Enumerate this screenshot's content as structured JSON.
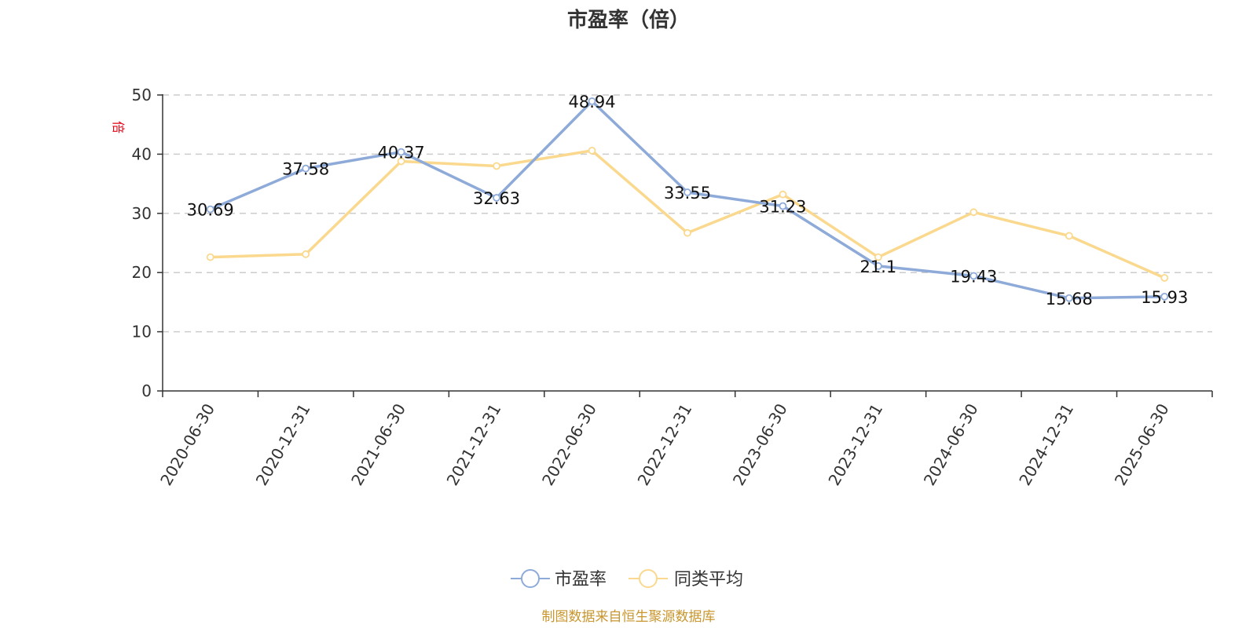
{
  "chart_data": {
    "type": "line",
    "title": "市盈率（倍）",
    "ylabel": "倍",
    "xlabel": "",
    "ylim": [
      0,
      50
    ],
    "yticks": [
      0,
      10,
      20,
      30,
      40,
      50
    ],
    "grid": true,
    "legend_position": "bottom-center",
    "categories": [
      "2020-06-30",
      "2020-12-31",
      "2021-06-30",
      "2021-12-31",
      "2022-06-30",
      "2022-12-31",
      "2023-06-30",
      "2023-12-31",
      "2024-06-30",
      "2024-12-31",
      "2025-06-30"
    ],
    "series": [
      {
        "name": "市盈率",
        "color": "#8eaad8",
        "values": [
          30.69,
          37.58,
          40.37,
          32.63,
          48.94,
          33.55,
          31.23,
          21.1,
          19.43,
          15.68,
          15.93
        ],
        "labels": [
          "30.69",
          "37.58",
          "40.37",
          "32.63",
          "48.94",
          "33.55",
          "31.23",
          "21.1",
          "19.43",
          "15.68",
          "15.93"
        ]
      },
      {
        "name": "同类平均",
        "color": "#fad98e",
        "values": [
          22.6,
          23.1,
          38.8,
          38.0,
          40.6,
          26.7,
          33.2,
          22.6,
          30.2,
          26.2,
          19.1
        ]
      }
    ],
    "source": "制图数据来自恒生聚源数据库"
  }
}
